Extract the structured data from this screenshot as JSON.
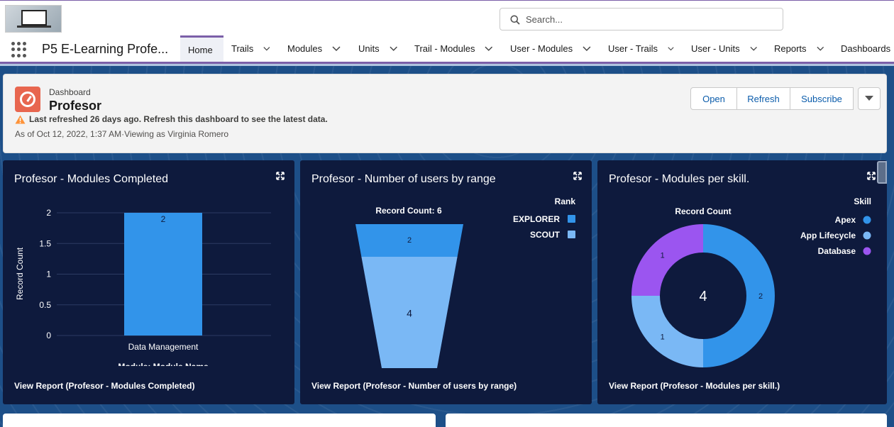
{
  "search": {
    "placeholder": "Search..."
  },
  "app": {
    "name": "P5 E-Learning Profe..."
  },
  "nav": {
    "tabs": [
      {
        "label": "Home",
        "active": true,
        "has_menu": false
      },
      {
        "label": "Trails",
        "has_menu": true
      },
      {
        "label": "Modules",
        "has_menu": true
      },
      {
        "label": "Units",
        "has_menu": true
      },
      {
        "label": "Trail - Modules",
        "has_menu": true
      },
      {
        "label": "User - Modules",
        "has_menu": true
      },
      {
        "label": "User - Trails",
        "has_menu": true
      },
      {
        "label": "User - Units",
        "has_menu": true
      },
      {
        "label": "Reports",
        "has_menu": true
      },
      {
        "label": "Dashboards",
        "has_menu": false
      }
    ]
  },
  "dashboard": {
    "type_label": "Dashboard",
    "title": "Profesor",
    "warning": "Last refreshed 26 days ago. Refresh this dashboard to see the latest data.",
    "as_of": "As of Oct 12, 2022, 1:37 AM·Viewing as Virginia Romero",
    "buttons": {
      "open": "Open",
      "refresh": "Refresh",
      "subscribe": "Subscribe"
    }
  },
  "panels": {
    "modules_completed": {
      "title": "Profesor - Modules Completed",
      "view_report": "View Report (Profesor - Modules Completed)"
    },
    "users_by_range": {
      "title": "Profesor - Number of users by range",
      "view_report": "View Report (Profesor - Number of users by range)"
    },
    "modules_per_skill": {
      "title": "Profesor - Modules per skill.",
      "view_report": "View Report (Profesor - Modules per skill.)"
    }
  },
  "colors": {
    "panel_bg": "#0e1a3d",
    "bar": "#3294ea",
    "light_blue": "#7ab8f5",
    "purple": "#9b55f0",
    "accent": "#7b5fa8"
  },
  "chart_data": [
    {
      "type": "bar",
      "categories": [
        "Data Management"
      ],
      "values": [
        2
      ],
      "data_labels": [
        "2"
      ],
      "xlabel": "Data Management",
      "module_label": "Module: Module Name",
      "ylabel": "Record Count",
      "yticks": [
        "0",
        "0.5",
        "1",
        "1.5",
        "2"
      ],
      "ylim": [
        0,
        2
      ],
      "grid": true
    },
    {
      "type": "funnel",
      "header": "Record Count: 6",
      "legend_title": "Rank",
      "legend_position": "top-right",
      "series": [
        {
          "name": "EXPLORER",
          "value": 2,
          "color": "#3294ea"
        },
        {
          "name": "SCOUT",
          "value": 4,
          "color": "#7ab8f5"
        }
      ]
    },
    {
      "type": "pie",
      "donut": true,
      "header": "Record Count",
      "center_total": "4",
      "legend_title": "Skill",
      "legend_position": "top-right",
      "series": [
        {
          "name": "Apex",
          "value": 2,
          "color": "#3294ea"
        },
        {
          "name": "App Lifecycle",
          "value": 1,
          "color": "#7ab8f5"
        },
        {
          "name": "Database",
          "value": 1,
          "color": "#9b55f0"
        }
      ]
    }
  ]
}
